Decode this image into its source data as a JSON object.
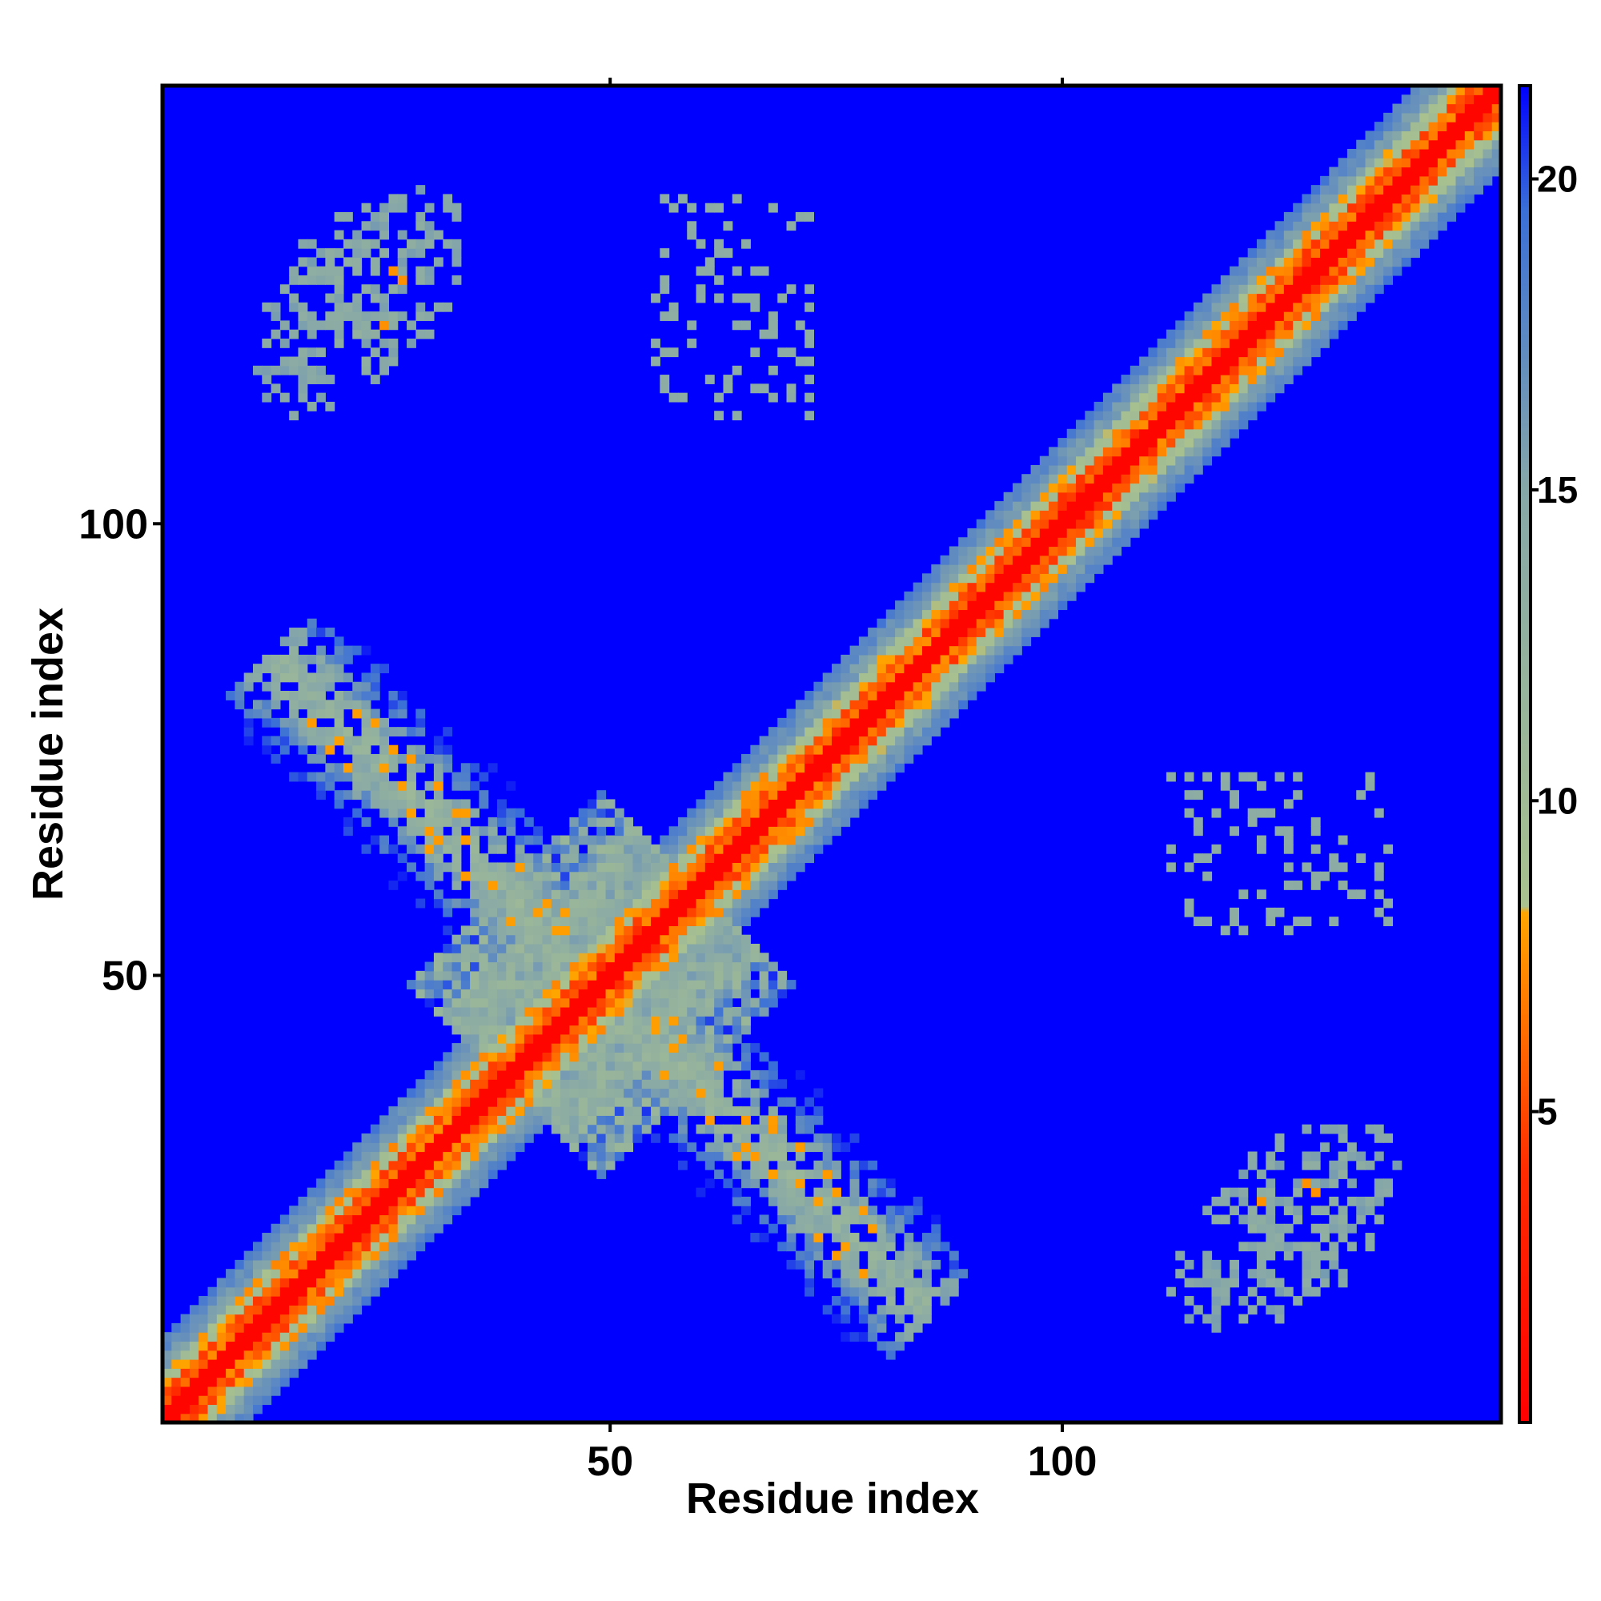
{
  "chart_data": {
    "type": "heatmap",
    "title": "",
    "xlabel": "Residue index",
    "ylabel": "Residue index",
    "n_residues": 148,
    "xlim": [
      1,
      148
    ],
    "ylim": [
      1,
      148
    ],
    "x_ticks": [
      50,
      100
    ],
    "y_ticks": [
      50,
      100
    ],
    "colorbar": {
      "ticks": [
        5,
        10,
        15,
        20
      ],
      "range": [
        0,
        21.5
      ],
      "stops": [
        {
          "value": 0,
          "color": "#ff0000"
        },
        {
          "value": 4,
          "color": "#ff2a00"
        },
        {
          "value": 8.2,
          "color": "#ffa500"
        },
        {
          "value": 8.3,
          "color": "#a9c18f"
        },
        {
          "value": 15,
          "color": "#86a7a8"
        },
        {
          "value": 19.5,
          "color": "#3a6fd8"
        },
        {
          "value": 21.5,
          "color": "#0000ff"
        }
      ],
      "cutoff_color": "#0000ff"
    },
    "matrix_description_values": {
      "distance_cutoff": 21,
      "diagonal_value": 0,
      "helix_band_halfwidth_residues": 8
    },
    "contact_regions": [
      {
        "name": "x-arm-upper-left",
        "x_range": [
          10,
          45
        ],
        "y_range": [
          53,
          82
        ]
      },
      {
        "name": "x-arm-lower-right",
        "x_range": [
          53,
          82
        ],
        "y_range": [
          10,
          45
        ]
      },
      {
        "name": "corner-upper-left",
        "x_range": [
          8,
          42
        ],
        "y_range": [
          108,
          143
        ]
      },
      {
        "name": "corner-lower-right",
        "x_range": [
          108,
          143
        ],
        "y_range": [
          8,
          42
        ]
      },
      {
        "name": "sparse-upper-middle",
        "x_range": [
          55,
          72
        ],
        "y_range": [
          112,
          136
        ]
      },
      {
        "name": "sparse-lower-middle",
        "x_range": [
          112,
          136
        ],
        "y_range": [
          55,
          72
        ]
      }
    ]
  }
}
